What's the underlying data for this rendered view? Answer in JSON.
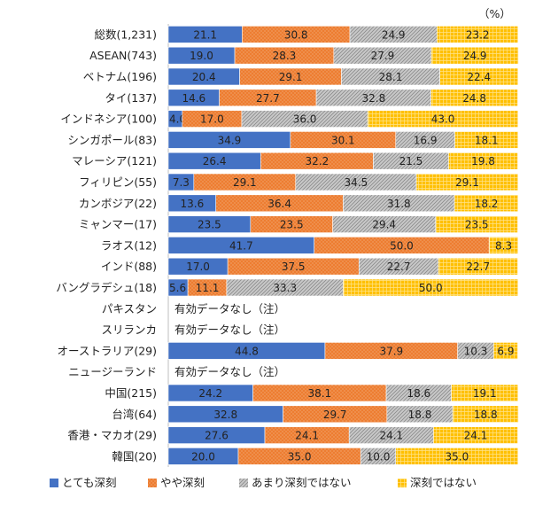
{
  "chart_data": {
    "type": "bar",
    "orientation": "horizontal",
    "stacked": true,
    "unit": "（%）",
    "xlim": [
      0,
      100
    ],
    "grid": false,
    "legend_position": "bottom",
    "categories": [
      "総数(1,231)",
      "ASEAN(743)",
      "ベトナム(196)",
      "タイ(137)",
      "インドネシア(100)",
      "シンガポール(83)",
      "マレーシア(121)",
      "フィリピン(55)",
      "カンボジア(22)",
      "ミャンマー(17)",
      "ラオス(12)",
      "インド(88)",
      "バングラデシュ(18)",
      "パキスタン",
      "スリランカ",
      "オーストラリア(29)",
      "ニュージーランド",
      "中国(215)",
      "台湾(64)",
      "香港・マカオ(29)",
      "韓国(20)"
    ],
    "no_data_text": "有効データなし（注）",
    "series": [
      {
        "name": "とても深刻",
        "color": "#4472c4",
        "pattern": "solid",
        "values": [
          21.1,
          19.0,
          20.4,
          14.6,
          4.0,
          34.9,
          26.4,
          7.3,
          13.6,
          23.5,
          41.7,
          17.0,
          5.6,
          null,
          null,
          44.8,
          null,
          24.2,
          32.8,
          27.6,
          20.0
        ]
      },
      {
        "name": "やや深刻",
        "color": "#ed7d31",
        "pattern": "dots",
        "values": [
          30.8,
          28.3,
          29.1,
          27.7,
          17.0,
          30.1,
          32.2,
          29.1,
          36.4,
          23.5,
          50.0,
          37.5,
          11.1,
          null,
          null,
          37.9,
          null,
          38.1,
          29.7,
          24.1,
          35.0
        ]
      },
      {
        "name": "あまり深刻ではない",
        "color": "#a5a5a5",
        "pattern": "diagonal",
        "values": [
          24.9,
          27.9,
          28.1,
          32.8,
          36.0,
          16.9,
          21.5,
          34.5,
          31.8,
          29.4,
          0,
          22.7,
          33.3,
          null,
          null,
          10.3,
          null,
          18.6,
          18.8,
          24.1,
          10.0
        ]
      },
      {
        "name": "深刻ではない",
        "color": "#ffc000",
        "pattern": "grid",
        "values": [
          23.2,
          24.9,
          22.4,
          24.8,
          43.0,
          18.1,
          19.8,
          29.1,
          18.2,
          23.5,
          8.3,
          22.7,
          50.0,
          null,
          null,
          6.9,
          null,
          19.1,
          18.8,
          24.1,
          35.0
        ]
      }
    ]
  }
}
